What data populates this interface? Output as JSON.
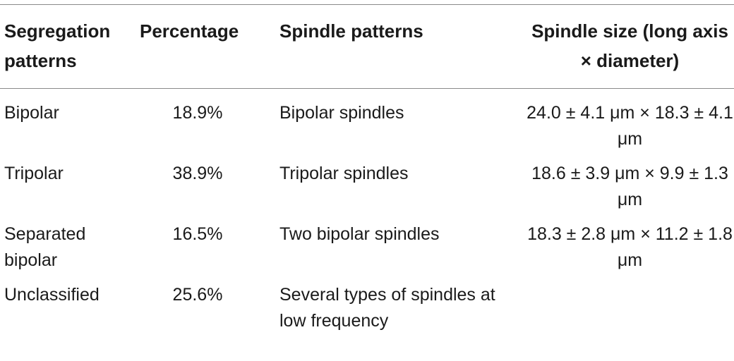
{
  "table": {
    "headers": {
      "segregation": "Segregation patterns",
      "percentage": "Percentage",
      "spindle_patterns": "Spindle patterns",
      "spindle_size": "Spindle size (long axis × diameter)"
    },
    "rows": [
      {
        "segregation": "Bipolar",
        "percentage": "18.9%",
        "spindle_patterns": "Bipolar spindles",
        "spindle_size": "24.0 ± 4.1 μm × 18.3 ± 4.1 μm"
      },
      {
        "segregation": "Tripolar",
        "percentage": "38.9%",
        "spindle_patterns": "Tripolar spindles",
        "spindle_size": "18.6 ± 3.9 μm × 9.9 ± 1.3 μm"
      },
      {
        "segregation": "Separated bipolar",
        "percentage": "16.5%",
        "spindle_patterns": "Two bipolar spindles",
        "spindle_size": "18.3 ± 2.8 μm × 11.2 ± 1.8 μm"
      },
      {
        "segregation": "Unclassified",
        "percentage": "25.6%",
        "spindle_patterns": "Several types of spindles at low frequency",
        "spindle_size": ""
      }
    ]
  }
}
